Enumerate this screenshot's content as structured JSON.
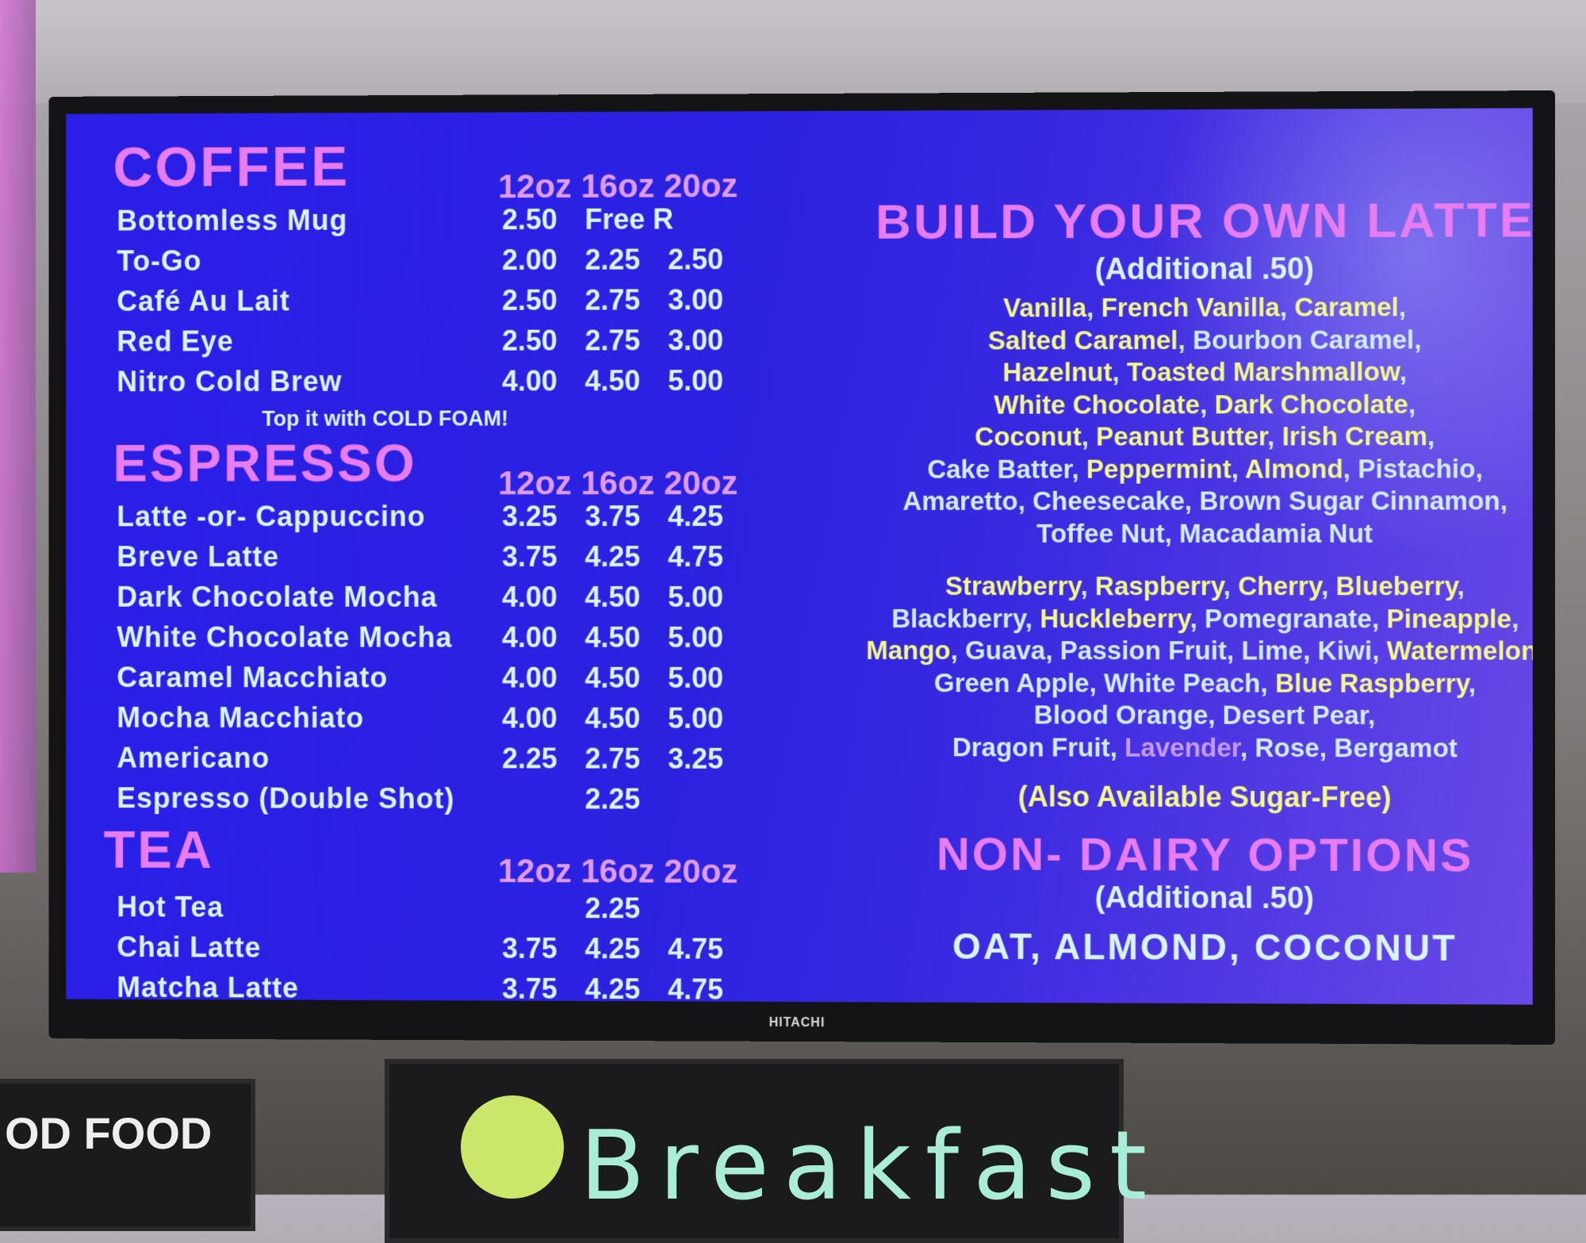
{
  "tv_brand": "HITACHI",
  "colors": {
    "heading": "#e77cf3",
    "text": "#d8f4ff",
    "flavor_highlight": "#f3f78c",
    "lavender": "#c59af8",
    "screen": "#2a1ee8"
  },
  "sizes": [
    "12oz",
    "16oz",
    "20oz"
  ],
  "coffee": {
    "title": "COFFEE",
    "note": "Top it with COLD FOAM!",
    "items": [
      {
        "name": "Bottomless Mug",
        "prices": [
          "2.50",
          "Free R",
          ""
        ]
      },
      {
        "name": "To-Go",
        "prices": [
          "2.00",
          "2.25",
          "2.50"
        ]
      },
      {
        "name": "Café Au Lait",
        "prices": [
          "2.50",
          "2.75",
          "3.00"
        ]
      },
      {
        "name": "Red Eye",
        "prices": [
          "2.50",
          "2.75",
          "3.00"
        ]
      },
      {
        "name": "Nitro Cold Brew",
        "prices": [
          "4.00",
          "4.50",
          "5.00"
        ]
      }
    ]
  },
  "espresso": {
    "title": "ESPRESSO",
    "items": [
      {
        "name": "Latte -or- Cappuccino",
        "prices": [
          "3.25",
          "3.75",
          "4.25"
        ]
      },
      {
        "name": "Breve Latte",
        "prices": [
          "3.75",
          "4.25",
          "4.75"
        ]
      },
      {
        "name": "Dark Chocolate Mocha",
        "prices": [
          "4.00",
          "4.50",
          "5.00"
        ]
      },
      {
        "name": "White Chocolate Mocha",
        "prices": [
          "4.00",
          "4.50",
          "5.00"
        ]
      },
      {
        "name": "Caramel Macchiato",
        "prices": [
          "4.00",
          "4.50",
          "5.00"
        ]
      },
      {
        "name": "Mocha Macchiato",
        "prices": [
          "4.00",
          "4.50",
          "5.00"
        ]
      },
      {
        "name": "Americano",
        "prices": [
          "2.25",
          "2.75",
          "3.25"
        ]
      },
      {
        "name": "Espresso (Double Shot)",
        "prices": [
          "",
          "2.25",
          ""
        ]
      }
    ]
  },
  "tea": {
    "title": "TEA",
    "items": [
      {
        "name": "Hot Tea",
        "prices": [
          "",
          "2.25",
          ""
        ]
      },
      {
        "name": "Chai Latte",
        "prices": [
          "3.75",
          "4.25",
          "4.75"
        ]
      },
      {
        "name": "Matcha Latte",
        "prices": [
          "3.75",
          "4.25",
          "4.75"
        ]
      }
    ]
  },
  "latte": {
    "title": "BUILD YOUR OWN LATTE",
    "additional": "(Additional .50)",
    "flavor_lines": [
      [
        [
          "Vanilla",
          "y"
        ],
        [
          "French Vanilla",
          "y"
        ],
        [
          "Caramel",
          "y"
        ]
      ],
      [
        [
          "Salted Caramel",
          "y"
        ],
        [
          "Bourbon Caramel",
          "b"
        ]
      ],
      [
        [
          "Hazelnut",
          "y"
        ],
        [
          "Toasted Marshmallow",
          "y"
        ]
      ],
      [
        [
          "White Chocolate",
          "y"
        ],
        [
          "Dark Chocolate",
          "y"
        ]
      ],
      [
        [
          "Coconut",
          "y"
        ],
        [
          "Peanut Butter",
          "y"
        ],
        [
          "Irish Cream",
          "y"
        ]
      ],
      [
        [
          "Cake Batter",
          "b"
        ],
        [
          "Peppermint",
          "y"
        ],
        [
          "Almond",
          "y"
        ],
        [
          "Pistachio",
          "b"
        ]
      ],
      [
        [
          "Amaretto",
          "b"
        ],
        [
          "Cheesecake",
          "b"
        ],
        [
          "Brown Sugar Cinnamon",
          "b"
        ]
      ],
      [
        [
          "Toffee Nut",
          "b"
        ],
        [
          "Macadamia Nut",
          "b"
        ]
      ]
    ],
    "fruit_lines": [
      [
        [
          "Strawberry",
          "y"
        ],
        [
          "Raspberry",
          "y"
        ],
        [
          "Cherry",
          "y"
        ],
        [
          "Blueberry",
          "y"
        ]
      ],
      [
        [
          "Blackberry",
          "b"
        ],
        [
          "Huckleberry",
          "y"
        ],
        [
          "Pomegranate",
          "b"
        ],
        [
          "Pineapple",
          "y"
        ]
      ],
      [
        [
          "Mango",
          "y"
        ],
        [
          "Guava",
          "b"
        ],
        [
          "Passion Fruit",
          "b"
        ],
        [
          "Lime",
          "b"
        ],
        [
          "Kiwi",
          "b"
        ],
        [
          "Watermelon",
          "y"
        ]
      ],
      [
        [
          "Green Apple",
          "b"
        ],
        [
          "White Peach",
          "b"
        ],
        [
          "Blue Raspberry",
          "y"
        ]
      ],
      [
        [
          "Blood Orange",
          "b"
        ],
        [
          "Desert Pear",
          "b"
        ]
      ],
      [
        [
          "Dragon Fruit",
          "b"
        ],
        [
          "Lavender",
          "p"
        ],
        [
          "Rose",
          "b"
        ],
        [
          "Bergamot",
          "b"
        ]
      ]
    ],
    "sugar_free": "(Also Available Sugar-Free)"
  },
  "non_dairy": {
    "title": "NON- DAIRY OPTIONS",
    "additional": "(Additional .50)",
    "options": "OAT, ALMOND, COCONUT"
  },
  "below": {
    "breakfast": "Breakfast",
    "left_sign": "OD FOOD"
  }
}
